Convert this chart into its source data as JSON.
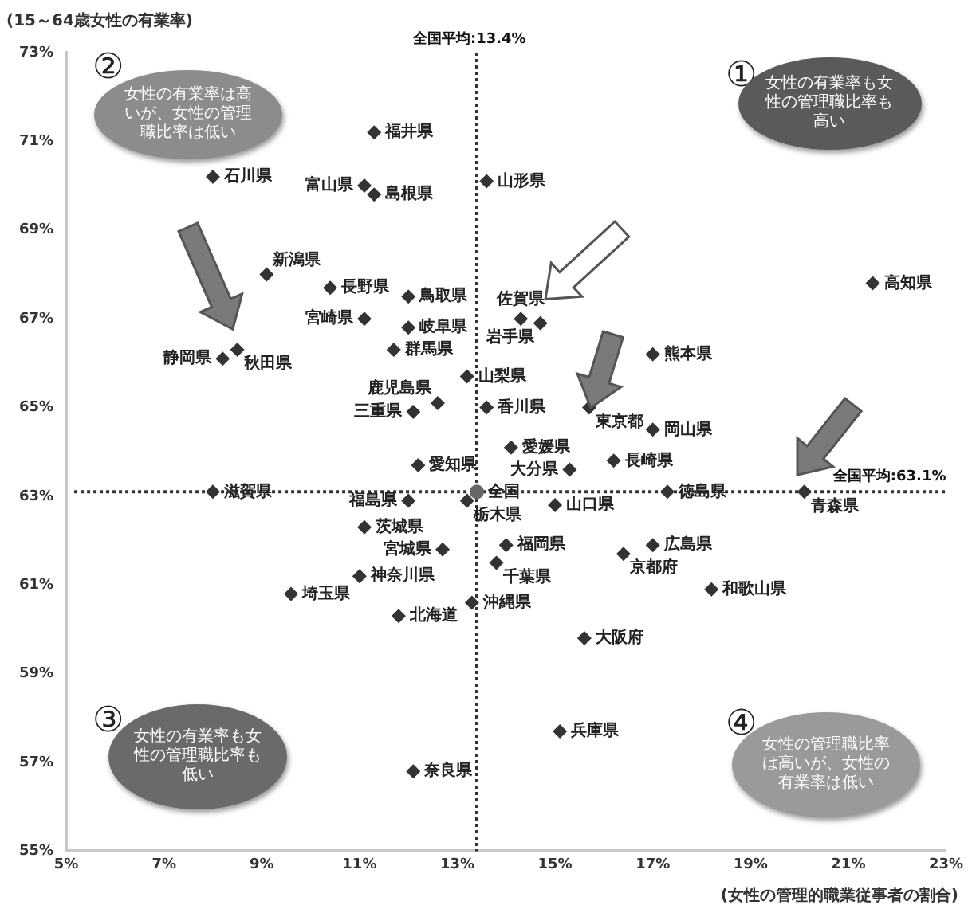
{
  "chart_data": {
    "type": "scatter",
    "xlabel": "(女性の管理的職業従事者の割合)",
    "ylabel": "(15～64歳女性の有業率)",
    "xlim": [
      5,
      23
    ],
    "ylim": [
      55,
      73
    ],
    "xticks": [
      {
        "value": 5,
        "label": "5%"
      },
      {
        "value": 7,
        "label": "7%"
      },
      {
        "value": 9,
        "label": "9%"
      },
      {
        "value": 11,
        "label": "11%"
      },
      {
        "value": 13,
        "label": "13%"
      },
      {
        "value": 15,
        "label": "15%"
      },
      {
        "value": 17,
        "label": "17%"
      },
      {
        "value": 19,
        "label": "19%"
      },
      {
        "value": 21,
        "label": "21%"
      },
      {
        "value": 23,
        "label": "23%"
      }
    ],
    "yticks": [
      {
        "value": 55,
        "label": "55%"
      },
      {
        "value": 57,
        "label": "57%"
      },
      {
        "value": 59,
        "label": "59%"
      },
      {
        "value": 61,
        "label": "61%"
      },
      {
        "value": 63,
        "label": "63%"
      },
      {
        "value": 65,
        "label": "65%"
      },
      {
        "value": 67,
        "label": "67%"
      },
      {
        "value": 69,
        "label": "69%"
      },
      {
        "value": 71,
        "label": "71%"
      },
      {
        "value": 73,
        "label": "73%"
      }
    ],
    "grid": false,
    "legend": false,
    "marker": "diamond",
    "ref_lines": [
      {
        "axis": "x",
        "value": 13.4,
        "label": "全国平均:13.4%",
        "color": "#333333",
        "line_style": "dotted"
      },
      {
        "axis": "y",
        "value": 63.1,
        "label": "全国平均:63.1%",
        "color": "#333333",
        "line_style": "dotted"
      }
    ],
    "annotations": [
      "①",
      "女性の有業率も女性の管理職比率も高い",
      "②",
      "女性の有業率は高いが、女性の管理職比率は低い",
      "③",
      "女性の有業率も女性の管理職比率も低い",
      "④",
      "女性の管理職比率は高いが、女性の有業率は低い"
    ],
    "series": [
      {
        "name": "全国",
        "color": "#666666",
        "marker": "circle",
        "x": [
          13.4
        ],
        "values": [
          63.1
        ]
      },
      {
        "name": "石川県",
        "color": "#333333",
        "x": [
          8.0
        ],
        "values": [
          70.2
        ]
      },
      {
        "name": "福井県",
        "color": "#333333",
        "x": [
          11.3
        ],
        "values": [
          71.2
        ]
      },
      {
        "name": "富山県",
        "color": "#333333",
        "x": [
          11.1
        ],
        "values": [
          70.0
        ]
      },
      {
        "name": "島根県",
        "color": "#333333",
        "x": [
          11.3
        ],
        "values": [
          69.8
        ]
      },
      {
        "name": "山形県",
        "color": "#333333",
        "x": [
          13.6
        ],
        "values": [
          70.1
        ]
      },
      {
        "name": "新潟県",
        "color": "#333333",
        "x": [
          9.1
        ],
        "values": [
          68.0
        ]
      },
      {
        "name": "長野県",
        "color": "#333333",
        "x": [
          10.4
        ],
        "values": [
          67.7
        ]
      },
      {
        "name": "鳥取県",
        "color": "#333333",
        "x": [
          12.0
        ],
        "values": [
          67.5
        ]
      },
      {
        "name": "宮崎県",
        "color": "#333333",
        "x": [
          11.1
        ],
        "values": [
          67.0
        ]
      },
      {
        "name": "岐阜県",
        "color": "#333333",
        "x": [
          12.0
        ],
        "values": [
          66.8
        ]
      },
      {
        "name": "秋田県",
        "color": "#333333",
        "x": [
          8.5
        ],
        "values": [
          66.3
        ]
      },
      {
        "name": "静岡県",
        "color": "#333333",
        "x": [
          8.2
        ],
        "values": [
          66.1
        ]
      },
      {
        "name": "群馬県",
        "color": "#333333",
        "x": [
          11.7
        ],
        "values": [
          66.3
        ]
      },
      {
        "name": "山梨県",
        "color": "#333333",
        "x": [
          13.2
        ],
        "values": [
          65.7
        ]
      },
      {
        "name": "鹿児島県",
        "color": "#333333",
        "x": [
          12.6
        ],
        "values": [
          65.1
        ]
      },
      {
        "name": "三重県",
        "color": "#333333",
        "x": [
          12.1
        ],
        "values": [
          64.9
        ]
      },
      {
        "name": "香川県",
        "color": "#333333",
        "x": [
          13.6
        ],
        "values": [
          65.0
        ]
      },
      {
        "name": "佐賀県",
        "color": "#333333",
        "x": [
          14.3
        ],
        "values": [
          67.0
        ]
      },
      {
        "name": "岩手県",
        "color": "#333333",
        "x": [
          14.7
        ],
        "values": [
          66.9
        ]
      },
      {
        "name": "熊本県",
        "color": "#333333",
        "x": [
          17.0
        ],
        "values": [
          66.2
        ]
      },
      {
        "name": "高知県",
        "color": "#333333",
        "x": [
          21.5
        ],
        "values": [
          67.8
        ]
      },
      {
        "name": "東京都",
        "color": "#333333",
        "x": [
          15.7
        ],
        "values": [
          65.0
        ]
      },
      {
        "name": "岡山県",
        "color": "#333333",
        "x": [
          17.0
        ],
        "values": [
          64.5
        ]
      },
      {
        "name": "愛媛県",
        "color": "#333333",
        "x": [
          14.1
        ],
        "values": [
          64.1
        ]
      },
      {
        "name": "長崎県",
        "color": "#333333",
        "x": [
          16.2
        ],
        "values": [
          63.8
        ]
      },
      {
        "name": "大分県",
        "color": "#333333",
        "x": [
          15.3
        ],
        "values": [
          63.6
        ]
      },
      {
        "name": "愛知県",
        "color": "#333333",
        "x": [
          12.2
        ],
        "values": [
          63.7
        ]
      },
      {
        "name": "滋賀県",
        "color": "#333333",
        "x": [
          8.0
        ],
        "values": [
          63.1
        ]
      },
      {
        "name": "福島県",
        "color": "#333333",
        "x": [
          12.0
        ],
        "values": [
          62.9
        ]
      },
      {
        "name": "栃木県",
        "color": "#333333",
        "x": [
          13.2
        ],
        "values": [
          62.9
        ]
      },
      {
        "name": "山口県",
        "color": "#333333",
        "x": [
          15.0
        ],
        "values": [
          62.8
        ]
      },
      {
        "name": "徳島県",
        "color": "#333333",
        "x": [
          17.3
        ],
        "values": [
          63.1
        ]
      },
      {
        "name": "青森県",
        "color": "#333333",
        "x": [
          20.1
        ],
        "values": [
          63.1
        ]
      },
      {
        "name": "茨城県",
        "color": "#333333",
        "x": [
          11.1
        ],
        "values": [
          62.3
        ]
      },
      {
        "name": "宮城県",
        "color": "#333333",
        "x": [
          12.7
        ],
        "values": [
          61.8
        ]
      },
      {
        "name": "福岡県",
        "color": "#333333",
        "x": [
          14.0
        ],
        "values": [
          61.9
        ]
      },
      {
        "name": "広島県",
        "color": "#333333",
        "x": [
          17.0
        ],
        "values": [
          61.9
        ]
      },
      {
        "name": "京都府",
        "color": "#333333",
        "x": [
          16.4
        ],
        "values": [
          61.7
        ]
      },
      {
        "name": "千葉県",
        "color": "#333333",
        "x": [
          13.8
        ],
        "values": [
          61.5
        ]
      },
      {
        "name": "神奈川県",
        "color": "#333333",
        "x": [
          11.0
        ],
        "values": [
          61.2
        ]
      },
      {
        "name": "埼玉県",
        "color": "#333333",
        "x": [
          9.6
        ],
        "values": [
          60.8
        ]
      },
      {
        "name": "和歌山県",
        "color": "#333333",
        "x": [
          18.2
        ],
        "values": [
          60.9
        ]
      },
      {
        "name": "沖縄県",
        "color": "#333333",
        "x": [
          13.3
        ],
        "values": [
          60.6
        ]
      },
      {
        "name": "北海道",
        "color": "#333333",
        "x": [
          11.8
        ],
        "values": [
          60.3
        ]
      },
      {
        "name": "大阪府",
        "color": "#333333",
        "x": [
          15.6
        ],
        "values": [
          59.8
        ]
      },
      {
        "name": "兵庫県",
        "color": "#333333",
        "x": [
          15.1
        ],
        "values": [
          57.7
        ]
      },
      {
        "name": "奈良県",
        "color": "#333333",
        "x": [
          12.1
        ],
        "values": [
          56.8
        ]
      }
    ]
  }
}
